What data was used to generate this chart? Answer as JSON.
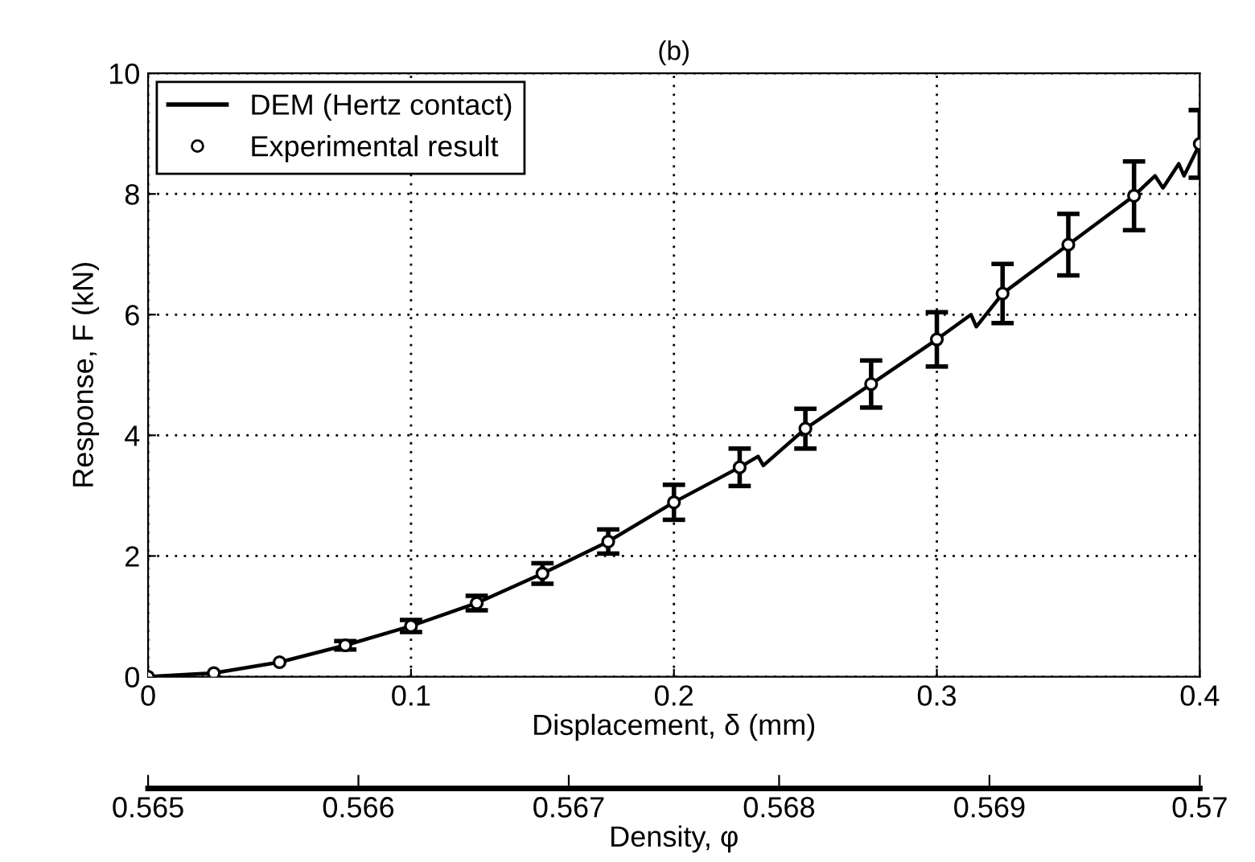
{
  "chart_data": {
    "type": "line",
    "title": "(b)",
    "xlabel": "Displacement, δ (mm)",
    "ylabel": "Response, F (kN)",
    "x2label": "Density, φ",
    "xlim": [
      0,
      0.4
    ],
    "xticks": [
      0,
      0.1,
      0.2,
      0.3,
      0.4
    ],
    "ylim": [
      0,
      10
    ],
    "yticks": [
      0,
      2,
      4,
      6,
      8,
      10
    ],
    "x2lim": [
      0.565,
      0.57
    ],
    "x2ticks": [
      0.565,
      0.566,
      0.567,
      0.568,
      0.569,
      0.57
    ],
    "grid": true,
    "legend": "top left",
    "series": [
      {
        "name": "DEM (Hertz contact)",
        "color": "#000000",
        "marker": "none",
        "line_style": "solid",
        "x": [
          0,
          0.025,
          0.05,
          0.075,
          0.1,
          0.125,
          0.15,
          0.175,
          0.2,
          0.225,
          0.232,
          0.234,
          0.25,
          0.275,
          0.3,
          0.313,
          0.315,
          0.325,
          0.35,
          0.375,
          0.383,
          0.386,
          0.392,
          0.394,
          0.4
        ],
        "values": [
          0,
          0.06,
          0.24,
          0.52,
          0.84,
          1.22,
          1.71,
          2.24,
          2.89,
          3.47,
          3.65,
          3.5,
          4.11,
          4.85,
          5.59,
          6.0,
          5.8,
          6.35,
          7.16,
          7.97,
          8.3,
          8.1,
          8.5,
          8.3,
          8.83
        ]
      },
      {
        "name": "Experimental result",
        "type": "scatter",
        "color": "#000000",
        "marker": "circle",
        "x": [
          0,
          0.025,
          0.05,
          0.075,
          0.1,
          0.125,
          0.15,
          0.175,
          0.2,
          0.225,
          0.25,
          0.275,
          0.3,
          0.325,
          0.35,
          0.375,
          0.4
        ],
        "values": [
          0,
          0.06,
          0.24,
          0.52,
          0.84,
          1.22,
          1.71,
          2.24,
          2.89,
          3.47,
          4.11,
          4.85,
          5.59,
          6.35,
          7.16,
          7.97,
          8.83
        ],
        "errors": [
          null,
          null,
          null,
          0.07,
          0.1,
          0.12,
          0.17,
          0.2,
          0.29,
          0.31,
          0.33,
          0.39,
          0.45,
          0.49,
          0.51,
          0.57,
          0.56
        ]
      }
    ]
  }
}
